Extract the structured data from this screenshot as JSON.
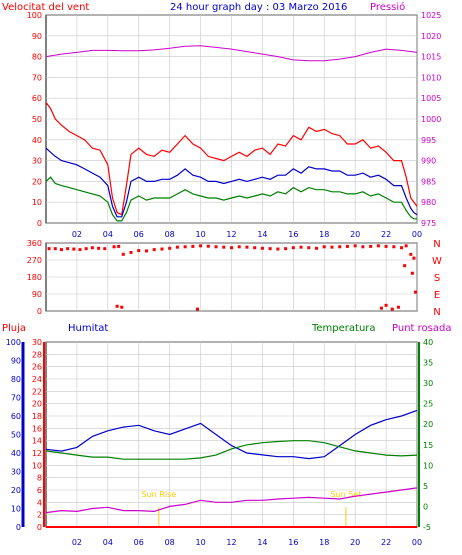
{
  "colors": {
    "frame": "#000000",
    "grid": "#c8c8c8",
    "wind_max": "#ff0000",
    "wind_avg": "#0000cc",
    "wind_min": "#008000",
    "pressure": "#cc00cc",
    "direction": "#ff0000",
    "humidity": "#0000cc",
    "temperature": "#008000",
    "dewpoint": "#cc00cc",
    "rain": "#ff0000",
    "sun": "#ffcc00",
    "axis_rain": "#0000cc",
    "axis_humid": "#ff0000",
    "axis_temp": "#008000"
  },
  "chart_data": [
    {
      "type": "line",
      "title": "24 hour graph day : 03 Marzo 2016",
      "left_title": "Velocitat del vent",
      "right_title": "Pressió",
      "x_ticks": [
        "02",
        "04",
        "06",
        "08",
        "10",
        "12",
        "14",
        "16",
        "18",
        "20",
        "22",
        "00"
      ],
      "x_range": [
        0,
        24
      ],
      "y_left_ticks": [
        "0",
        "10",
        "20",
        "30",
        "40",
        "50",
        "60",
        "70",
        "80",
        "90",
        "100"
      ],
      "y_left_range": [
        0,
        100
      ],
      "y_right_ticks": [
        "975",
        "980",
        "985",
        "990",
        "995",
        "1000",
        "1005",
        "1010",
        "1015",
        "1020",
        "1025"
      ],
      "y_right_range": [
        975,
        1025
      ],
      "grid": true,
      "series": [
        {
          "id": "wind_max",
          "color_key": "wind_max",
          "axis": "left",
          "x": [
            0.0,
            0.3,
            0.6,
            1.0,
            1.5,
            2.0,
            2.5,
            3.0,
            3.5,
            4.0,
            4.3,
            4.6,
            4.9,
            5.2,
            5.5,
            6.0,
            6.5,
            7.0,
            7.5,
            8.0,
            8.5,
            9.0,
            9.5,
            10.0,
            10.5,
            11.0,
            11.5,
            12.0,
            12.5,
            13.0,
            13.5,
            14.0,
            14.5,
            15.0,
            15.5,
            16.0,
            16.5,
            17.0,
            17.5,
            18.0,
            18.5,
            19.0,
            19.5,
            20.0,
            20.5,
            21.0,
            21.5,
            22.0,
            22.5,
            23.0,
            23.3,
            23.6,
            23.8,
            24.0
          ],
          "y": [
            58,
            55,
            50,
            47,
            44,
            42,
            40,
            36,
            35,
            28,
            12,
            5,
            4,
            18,
            33,
            36,
            33,
            32,
            35,
            34,
            38,
            42,
            38,
            36,
            32,
            31,
            30,
            32,
            34,
            32,
            35,
            36,
            33,
            38,
            37,
            42,
            40,
            46,
            44,
            45,
            43,
            42,
            38,
            38,
            40,
            36,
            37,
            34,
            30,
            30,
            22,
            12,
            10,
            8
          ]
        },
        {
          "id": "wind_avg",
          "color_key": "wind_avg",
          "axis": "left",
          "x": [
            0.0,
            0.3,
            0.6,
            1.0,
            1.5,
            2.0,
            2.5,
            3.0,
            3.5,
            4.0,
            4.3,
            4.6,
            4.9,
            5.2,
            5.5,
            6.0,
            6.5,
            7.0,
            7.5,
            8.0,
            8.5,
            9.0,
            9.5,
            10.0,
            10.5,
            11.0,
            11.5,
            12.0,
            12.5,
            13.0,
            13.5,
            14.0,
            14.5,
            15.0,
            15.5,
            16.0,
            16.5,
            17.0,
            17.5,
            18.0,
            18.5,
            19.0,
            19.5,
            20.0,
            20.5,
            21.0,
            21.5,
            22.0,
            22.5,
            23.0,
            23.3,
            23.6,
            23.8,
            24.0
          ],
          "y": [
            36,
            34,
            32,
            30,
            29,
            28,
            26,
            24,
            22,
            18,
            8,
            3,
            3,
            10,
            20,
            22,
            20,
            20,
            21,
            21,
            23,
            26,
            23,
            22,
            20,
            20,
            19,
            20,
            21,
            20,
            21,
            22,
            21,
            23,
            23,
            26,
            24,
            27,
            26,
            26,
            25,
            25,
            23,
            23,
            24,
            22,
            23,
            21,
            18,
            18,
            12,
            7,
            5,
            4
          ]
        },
        {
          "id": "wind_min",
          "color_key": "wind_min",
          "axis": "left",
          "x": [
            0.0,
            0.3,
            0.6,
            1.0,
            1.5,
            2.0,
            2.5,
            3.0,
            3.5,
            4.0,
            4.3,
            4.6,
            4.9,
            5.2,
            5.5,
            6.0,
            6.5,
            7.0,
            7.5,
            8.0,
            8.5,
            9.0,
            9.5,
            10.0,
            10.5,
            11.0,
            11.5,
            12.0,
            12.5,
            13.0,
            13.5,
            14.0,
            14.5,
            15.0,
            15.5,
            16.0,
            16.5,
            17.0,
            17.5,
            18.0,
            18.5,
            19.0,
            19.5,
            20.0,
            20.5,
            21.0,
            21.5,
            22.0,
            22.5,
            23.0,
            23.3,
            23.6,
            23.8,
            24.0
          ],
          "y": [
            20,
            22,
            19,
            18,
            17,
            16,
            15,
            14,
            13,
            10,
            4,
            1,
            1,
            5,
            11,
            13,
            11,
            12,
            12,
            12,
            14,
            16,
            14,
            13,
            12,
            12,
            11,
            12,
            13,
            12,
            13,
            14,
            13,
            15,
            14,
            17,
            15,
            17,
            16,
            16,
            15,
            15,
            14,
            14,
            15,
            13,
            14,
            12,
            10,
            10,
            6,
            3,
            2,
            2
          ]
        },
        {
          "id": "pressure",
          "color_key": "pressure",
          "axis": "right",
          "x": [
            0,
            1,
            2,
            3,
            4,
            5,
            6,
            7,
            8,
            9,
            10,
            11,
            12,
            13,
            14,
            15,
            16,
            17,
            18,
            19,
            20,
            21,
            22,
            23,
            24
          ],
          "y": [
            1015,
            1015.6,
            1016,
            1016.5,
            1016.5,
            1016.4,
            1016.4,
            1016.6,
            1017,
            1017.5,
            1017.6,
            1017.2,
            1016.8,
            1016.2,
            1015.6,
            1015,
            1014.2,
            1014,
            1014,
            1014.4,
            1015,
            1016,
            1016.8,
            1016.5,
            1016
          ]
        }
      ]
    },
    {
      "type": "scatter",
      "title": "",
      "x_ticks": [
        "02",
        "04",
        "06",
        "08",
        "10",
        "12",
        "14",
        "16",
        "18",
        "20",
        "22",
        "00"
      ],
      "x_range": [
        0,
        24
      ],
      "y_left_ticks": [
        "0",
        "90",
        "180",
        "270",
        "360"
      ],
      "y_left_range": [
        0,
        360
      ],
      "y_right_ticks": [
        "N",
        "W",
        "S",
        "E",
        "N"
      ],
      "grid": true,
      "series": [
        {
          "id": "direction",
          "color_key": "direction",
          "x": [
            0.2,
            0.6,
            1.0,
            1.4,
            1.8,
            2.2,
            2.6,
            3.0,
            3.4,
            3.8,
            4.4,
            4.7,
            5.0,
            5.5,
            6.0,
            6.5,
            7.0,
            7.5,
            8.0,
            8.5,
            9.0,
            9.5,
            10.0,
            10.5,
            11.0,
            11.5,
            12.0,
            12.5,
            13.0,
            13.5,
            14.0,
            14.5,
            15.0,
            15.5,
            16.0,
            16.5,
            17.0,
            17.5,
            18.0,
            18.5,
            19.0,
            19.5,
            20.0,
            20.5,
            21.0,
            21.5,
            22.0,
            22.5,
            23.0,
            23.3,
            23.6,
            23.8,
            4.6,
            4.9,
            9.8,
            21.7,
            22.0,
            22.4,
            22.8,
            23.2,
            23.7,
            23.9
          ],
          "y": [
            330,
            330,
            325,
            330,
            328,
            325,
            330,
            335,
            332,
            330,
            340,
            342,
            300,
            310,
            320,
            318,
            325,
            328,
            332,
            338,
            340,
            342,
            345,
            343,
            340,
            338,
            335,
            340,
            338,
            335,
            332,
            330,
            328,
            330,
            335,
            338,
            335,
            332,
            340,
            338,
            340,
            342,
            345,
            340,
            342,
            345,
            342,
            340,
            335,
            345,
            300,
            280,
            25,
            20,
            10,
            15,
            30,
            10,
            20,
            240,
            200,
            100
          ]
        }
      ]
    },
    {
      "type": "line",
      "title": "",
      "left_title_rain": "Pluja",
      "left_title_humid": "Humitat",
      "right_title_temp": "Temperatura",
      "right_title_dew": "Punt rosada",
      "x_ticks": [
        "02",
        "04",
        "06",
        "08",
        "10",
        "12",
        "14",
        "16",
        "18",
        "20",
        "22",
        "00"
      ],
      "x_range": [
        0,
        24
      ],
      "y_rain_ticks": [
        "0",
        "2",
        "4",
        "6",
        "8",
        "10",
        "12",
        "14",
        "16",
        "18",
        "20",
        "22",
        "24",
        "26",
        "28",
        "30"
      ],
      "y_rain_range": [
        0,
        30
      ],
      "y_humid_ticks": [
        "0",
        "10",
        "20",
        "30",
        "40",
        "50",
        "60",
        "70",
        "80",
        "90",
        "100"
      ],
      "y_humid_range": [
        0,
        100
      ],
      "y_temp_ticks": [
        "-5",
        "0",
        "5",
        "10",
        "15",
        "20",
        "25",
        "30",
        "35",
        "40"
      ],
      "y_temp_range": [
        -5,
        40
      ],
      "grid": true,
      "sun_labels": [
        "Sun Rise",
        "Sun Set"
      ],
      "sun_times": [
        7.3,
        19.4
      ],
      "series": [
        {
          "id": "humidity",
          "color_key": "humidity",
          "axis": "humid",
          "x": [
            0,
            1,
            2,
            3,
            4,
            5,
            6,
            7,
            8,
            9,
            10,
            11,
            12,
            13,
            14,
            15,
            16,
            17,
            18,
            19,
            20,
            21,
            22,
            23,
            24
          ],
          "y": [
            42,
            41,
            43,
            49,
            52,
            54,
            55,
            52,
            50,
            53,
            56,
            50,
            44,
            40,
            39,
            38,
            38,
            37,
            38,
            44,
            50,
            55,
            58,
            60,
            63
          ]
        },
        {
          "id": "temperature",
          "color_key": "temperature",
          "axis": "temp",
          "x": [
            0,
            1,
            2,
            3,
            4,
            5,
            6,
            7,
            8,
            9,
            10,
            11,
            12,
            13,
            14,
            15,
            16,
            17,
            18,
            19,
            20,
            21,
            22,
            23,
            24
          ],
          "y": [
            13.5,
            13,
            12.5,
            12,
            12,
            11.5,
            11.5,
            11.5,
            11.5,
            11.5,
            11.8,
            12.5,
            14,
            15,
            15.5,
            15.8,
            16,
            16,
            15.5,
            14.5,
            13.5,
            13,
            12.5,
            12.3,
            12.5
          ]
        },
        {
          "id": "dewpoint",
          "color_key": "dewpoint",
          "axis": "temp",
          "x": [
            0,
            1,
            2,
            3,
            4,
            5,
            6,
            7,
            8,
            9,
            10,
            11,
            12,
            13,
            14,
            15,
            16,
            17,
            18,
            19,
            20,
            21,
            22,
            23,
            24
          ],
          "y": [
            -1.5,
            -1,
            -1.2,
            -0.5,
            -0.2,
            -1,
            -1,
            -1.2,
            0,
            0.5,
            1.5,
            1,
            1,
            1.5,
            1.5,
            1.8,
            2,
            2.2,
            2,
            1.8,
            2.5,
            3,
            3.5,
            4,
            4.5
          ]
        },
        {
          "id": "rain",
          "color_key": "rain",
          "axis": "rain",
          "x": [
            0,
            24
          ],
          "y": [
            0,
            0
          ]
        }
      ]
    }
  ]
}
